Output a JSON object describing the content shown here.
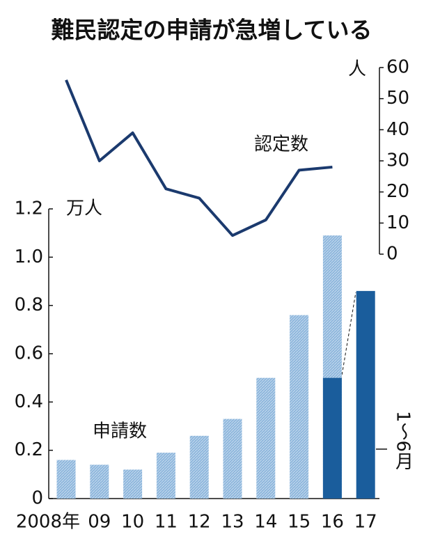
{
  "chart_data": {
    "type": "bar_line",
    "title": "難民認定の申請が急増している",
    "categories": [
      "2008年",
      "09",
      "10",
      "11",
      "12",
      "13",
      "14",
      "15",
      "16",
      "17"
    ],
    "series": [
      {
        "name": "申請数",
        "color": "#8db6dc",
        "values": [
          0.16,
          0.14,
          0.12,
          0.19,
          0.26,
          0.33,
          0.5,
          0.76,
          1.09,
          null
        ]
      },
      {
        "name": "1〜6月",
        "color": "#1a5d9c",
        "values": [
          null,
          null,
          null,
          null,
          null,
          null,
          null,
          null,
          0.5,
          0.86
        ]
      },
      {
        "name": "認定数",
        "color": "#1b3a6e",
        "axis": "y2",
        "type": "line",
        "values": [
          56,
          30,
          39,
          21,
          18,
          6,
          11,
          27,
          28,
          null
        ]
      }
    ],
    "y_label": "万人",
    "y2_label": "人",
    "ylim": [
      0,
      1.2
    ],
    "yticks": [
      0,
      0.2,
      0.4,
      0.6,
      0.8,
      {
        "value": 1,
        "label": "1.0"
      },
      1.2
    ],
    "y2lim": [
      0,
      60
    ],
    "y2ticks": [
      0,
      10,
      20,
      30,
      40,
      50,
      60
    ]
  }
}
